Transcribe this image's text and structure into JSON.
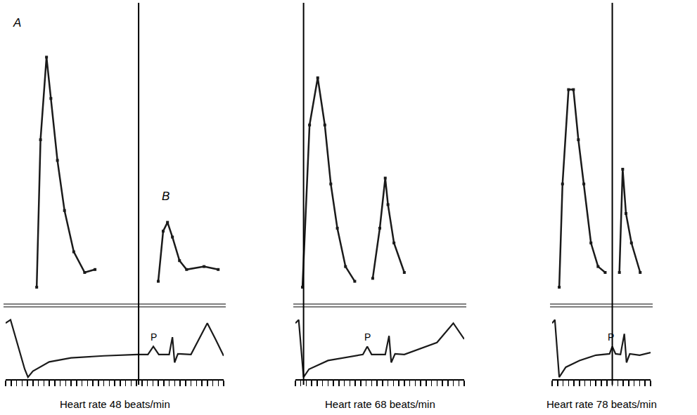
{
  "chart_data": [
    {
      "type": "line",
      "title": "Heart rate 48 beats/min",
      "xlim": [
        0,
        40
      ],
      "xticks": [
        0,
        1,
        2,
        3,
        4,
        5,
        6,
        7,
        8,
        9,
        10,
        11,
        12,
        13,
        14,
        15,
        16,
        17,
        18,
        19,
        20,
        21,
        22,
        23,
        24,
        25,
        26,
        27,
        28,
        29,
        30,
        31,
        32,
        33,
        34,
        35,
        36,
        37,
        38,
        39,
        40
      ],
      "tick_labels": false,
      "ylim": [
        0,
        100
      ],
      "y2lim": [
        0,
        10
      ],
      "cursor_x": 24.4,
      "series": [
        {
          "x": [
            5.7,
            6.4,
            7.5,
            8.3,
            9.5,
            10.8,
            12.5,
            14.5,
            16.4,
            null,
            28.0,
            28.9,
            29.7,
            30.6,
            31.9,
            33.2,
            36.4,
            39.0
          ],
          "values": [
            5,
            55,
            83,
            69,
            48,
            31,
            17,
            10,
            11,
            null,
            7,
            24,
            27,
            22,
            14,
            11,
            12,
            11
          ],
          "color": "#1a1a1a",
          "marker": "square",
          "line_style": "solid"
        },
        {
          "x": [
            0,
            0.9,
            3.5,
            4.1,
            5,
            8,
            12,
            18,
            24.1,
            26.1,
            27.1,
            28.1,
            30,
            30.6,
            31.0,
            31.6,
            34,
            37,
            38.5,
            40
          ],
          "values": [
            8.4,
            8.9,
            1.5,
            0.3,
            1.2,
            2.6,
            3.2,
            3.5,
            3.7,
            3.7,
            4.9,
            3.7,
            3.7,
            6.3,
            2.5,
            3.8,
            3.7,
            8.4,
            6,
            3.5
          ],
          "axis": "y2",
          "color": "#1a1a1a",
          "line_style": "solid"
        }
      ],
      "annotations": [
        {
          "text": "A",
          "x": 2,
          "y": 92
        },
        {
          "text": "B",
          "x": 29.4,
          "y": 33
        },
        {
          "text": "P",
          "x": 27.1,
          "y": 5.3,
          "axis": "y2"
        }
      ]
    },
    {
      "type": "line",
      "title": "Heart rate 68 beats/min",
      "xlim": [
        0,
        31
      ],
      "xticks": [
        0,
        1,
        2,
        3,
        4,
        5,
        6,
        7,
        8,
        9,
        10,
        11,
        12,
        13,
        14,
        15,
        16,
        17,
        18,
        19,
        20,
        21,
        22,
        23,
        24,
        25,
        26,
        27,
        28,
        29,
        30,
        31
      ],
      "tick_labels": false,
      "ylim": [
        0,
        100
      ],
      "y2lim": [
        0,
        10
      ],
      "cursor_x": 1.5,
      "series": [
        {
          "x": [
            1.3,
            2.6,
            4.1,
            5.4,
            6.5,
            7.7,
            9.2,
            10.9,
            null,
            14.2,
            15.5,
            16.5,
            17.0,
            18.1,
            20.0
          ],
          "values": [
            5,
            60,
            76,
            60,
            40,
            25,
            12,
            7,
            null,
            8,
            25,
            42,
            33,
            20,
            10
          ],
          "color": "#1a1a1a",
          "marker": "square",
          "line_style": "solid"
        },
        {
          "x": [
            0,
            0.6,
            1.5,
            2.5,
            6,
            11,
            12.4,
            13.2,
            14,
            16.5,
            17.2,
            17.6,
            18.3,
            20,
            26,
            29,
            31
          ],
          "values": [
            8.4,
            8.9,
            0.3,
            1.5,
            2.8,
            3.5,
            3.7,
            4.9,
            3.7,
            3.7,
            6.5,
            2.5,
            3.8,
            3.7,
            5.5,
            8.4,
            6
          ],
          "axis": "y2",
          "color": "#1a1a1a",
          "line_style": "solid"
        }
      ],
      "annotations": [
        {
          "text": "P",
          "x": 13.2,
          "y": 5.3,
          "axis": "y2"
        }
      ]
    },
    {
      "type": "line",
      "title": "Heart rate 78 beats/min",
      "xlim": [
        0,
        18
      ],
      "xticks": [
        0,
        1,
        2,
        3,
        4,
        5,
        6,
        7,
        8,
        9,
        10,
        11,
        12,
        13,
        14,
        15,
        16,
        17,
        18
      ],
      "tick_labels": false,
      "ylim": [
        0,
        100
      ],
      "y2lim": [
        0,
        10
      ],
      "cursor_x": 11,
      "series": [
        {
          "x": [
            1.3,
            1.9,
            3.0,
            3.9,
            4.8,
            5.8,
            7.1,
            8.4,
            9.7,
            null,
            12.3,
            12.9,
            13.5,
            14.5,
            16.1
          ],
          "values": [
            5,
            40,
            72,
            72,
            55,
            40,
            20,
            12,
            10,
            null,
            10,
            45,
            30,
            20,
            10
          ],
          "color": "#1a1a1a",
          "marker": "square",
          "line_style": "solid"
        },
        {
          "x": [
            0,
            0.5,
            1.3,
            2.5,
            5,
            8,
            10.5,
            11,
            11.6,
            12.5,
            13.2,
            13.6,
            14.2,
            16,
            18
          ],
          "values": [
            8.4,
            8.9,
            0.3,
            1.8,
            2.8,
            3.6,
            3.8,
            4.9,
            3.8,
            3.7,
            6.8,
            2.5,
            3.8,
            3.6,
            4
          ],
          "axis": "y2",
          "color": "#1a1a1a",
          "line_style": "solid"
        }
      ],
      "annotations": [
        {
          "text": "P",
          "x": 10.7,
          "y": 5.3,
          "axis": "y2"
        }
      ]
    }
  ]
}
